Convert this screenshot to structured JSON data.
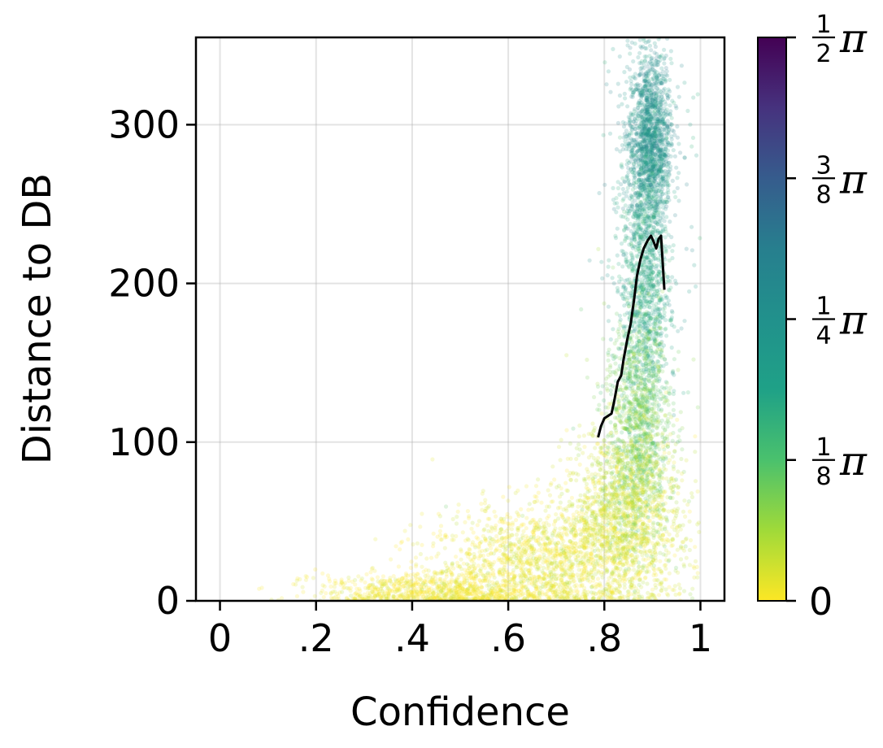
{
  "chart_data": {
    "type": "scatter",
    "xlabel": "Confidence",
    "ylabel": "Distance to DB",
    "xlim": [
      -0.05,
      1.05
    ],
    "ylim": [
      0,
      355
    ],
    "xticks": [
      0,
      0.2,
      0.4,
      0.6,
      0.8,
      1.0
    ],
    "xtick_labels": [
      "0",
      ".2",
      ".4",
      ".6",
      ".8",
      "1"
    ],
    "yticks": [
      0,
      100,
      200,
      300
    ],
    "ytick_labels": [
      "0",
      "100",
      "200",
      "300"
    ],
    "grid": true,
    "point_alpha": 0.2,
    "colormap": "viridis_r",
    "colorbar": {
      "range": [
        0,
        1.5708
      ],
      "ticks": [
        {
          "value": 0,
          "label": "0"
        },
        {
          "value": 0.3927,
          "num": "1",
          "den": "8",
          "sym": "π"
        },
        {
          "value": 0.7854,
          "num": "1",
          "den": "4",
          "sym": "π"
        },
        {
          "value": 1.1781,
          "num": "3",
          "den": "8",
          "sym": "π"
        },
        {
          "value": 1.5708,
          "num": "1",
          "den": "2",
          "sym": "π"
        }
      ]
    },
    "point_clusters": [
      {
        "count": 1500,
        "x_mean": 0.895,
        "x_sd": 0.022,
        "y_mean": 290,
        "y_sd": 28,
        "angle": 0.78
      },
      {
        "count": 1100,
        "x_mean": 0.885,
        "x_sd": 0.025,
        "y_mean": 200,
        "y_sd": 40,
        "angle": 0.62
      },
      {
        "count": 1200,
        "x_mean": 0.87,
        "x_sd": 0.035,
        "y_mean": 110,
        "y_sd": 35,
        "angle": 0.35
      },
      {
        "count": 1400,
        "x_mean": 0.84,
        "x_sd": 0.06,
        "y_mean": 55,
        "y_sd": 28,
        "angle": 0.12
      },
      {
        "count": 1600,
        "x_mean": 0.68,
        "x_sd": 0.12,
        "y_mean": 25,
        "y_sd": 18,
        "angle": 0.04
      },
      {
        "count": 900,
        "x_mean": 0.45,
        "x_sd": 0.12,
        "y_mean": 6,
        "y_sd": 6,
        "angle": 0.01
      },
      {
        "count": 200,
        "x_mean": 0.9,
        "x_sd": 0.06,
        "y_mean": 260,
        "y_sd": 50,
        "angle": 0.72
      }
    ],
    "series": [
      {
        "type": "line",
        "color": "#000000",
        "x": [
          0.787,
          0.793,
          0.8,
          0.81,
          0.815,
          0.82,
          0.828,
          0.835,
          0.84,
          0.848,
          0.855,
          0.862,
          0.868,
          0.875,
          0.882,
          0.89,
          0.897,
          0.903,
          0.908,
          0.913,
          0.918,
          0.925
        ],
        "y": [
          103,
          110,
          115,
          117,
          118,
          125,
          138,
          142,
          152,
          165,
          175,
          190,
          205,
          215,
          222,
          227,
          230,
          226,
          222,
          228,
          230,
          196
        ]
      }
    ]
  }
}
